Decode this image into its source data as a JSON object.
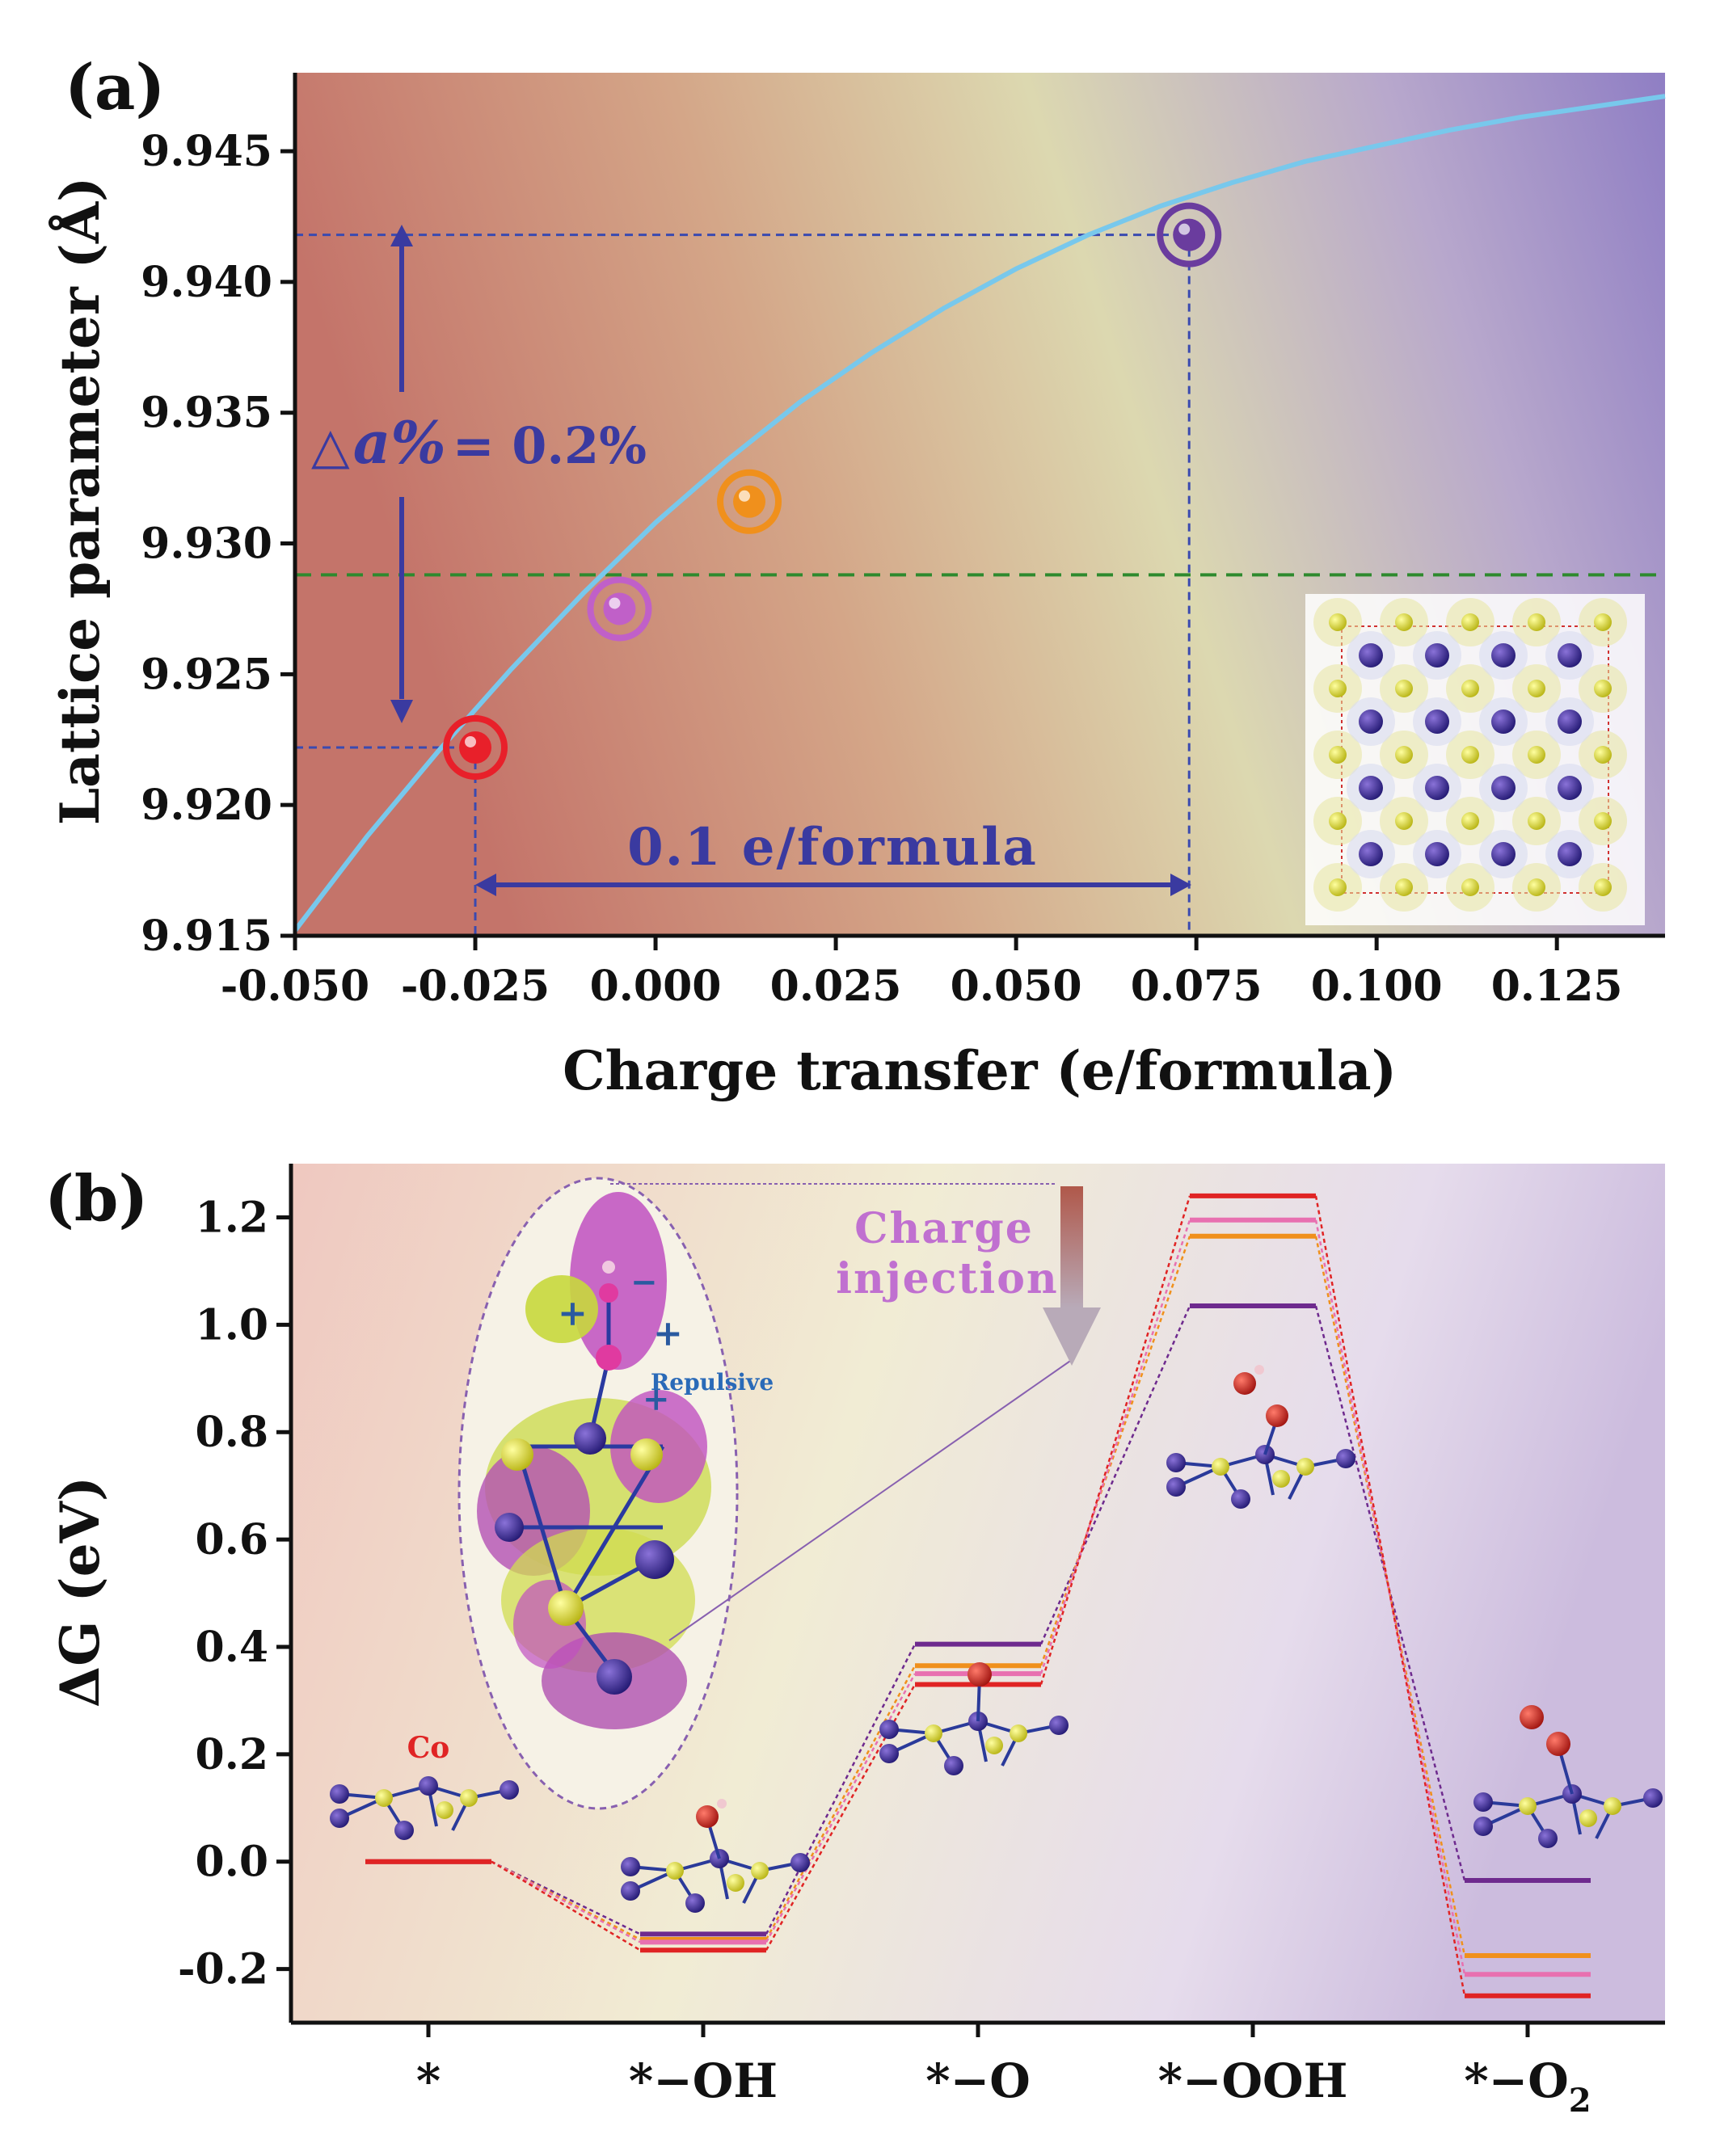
{
  "chart_data": [
    {
      "panel": "(a)",
      "type": "line",
      "xlabel": "Charge transfer (e/formula)",
      "ylabel": "Lattice parameter (Å)",
      "xlim": [
        -0.05,
        0.14
      ],
      "ylim": [
        9.915,
        9.948
      ],
      "xticks": [
        "-0.050",
        "-0.025",
        "0.000",
        "0.025",
        "0.050",
        "0.075",
        "0.100",
        "0.125"
      ],
      "xtick_values": [
        -0.05,
        -0.025,
        0,
        0.025,
        0.05,
        0.075,
        0.1,
        0.125
      ],
      "yticks": [
        "9.915",
        "9.920",
        "9.925",
        "9.930",
        "9.935",
        "9.940",
        "9.945"
      ],
      "ytick_values": [
        9.915,
        9.92,
        9.925,
        9.93,
        9.935,
        9.94,
        9.945
      ],
      "curve": {
        "x": [
          -0.05,
          -0.04,
          -0.03,
          -0.02,
          -0.01,
          0.0,
          0.01,
          0.02,
          0.03,
          0.04,
          0.05,
          0.06,
          0.07,
          0.08,
          0.09,
          0.1,
          0.11,
          0.12,
          0.13,
          0.14
        ],
        "y": [
          9.9152,
          9.9188,
          9.9221,
          9.9252,
          9.9281,
          9.9308,
          9.9332,
          9.9354,
          9.9373,
          9.939,
          9.9405,
          9.9418,
          9.9429,
          9.9438,
          9.9446,
          9.9452,
          9.9458,
          9.9463,
          9.9467,
          9.9471
        ],
        "color": "#78c8ec"
      },
      "points": [
        {
          "x": -0.025,
          "y": 9.9222,
          "color": "#e8202a"
        },
        {
          "x": -0.005,
          "y": 9.9275,
          "color": "#c060c8"
        },
        {
          "x": 0.013,
          "y": 9.9316,
          "color": "#f0901c"
        },
        {
          "x": 0.074,
          "y": 9.9418,
          "color": "#6a3c9e"
        }
      ],
      "reference_line": {
        "y": 9.9288,
        "color": "#2e8a2e"
      },
      "annotations": {
        "delta_prefix": "△",
        "delta_a": "a%",
        "delta_value": "= 0.2%",
        "charge_span": "0.1 e/formula"
      }
    },
    {
      "panel": "(b)",
      "type": "energy-level",
      "ylabel": "ΔG (eV)",
      "ylim": [
        -0.3,
        1.3
      ],
      "yticks": [
        "-0.2",
        "0.0",
        "0.2",
        "0.4",
        "0.6",
        "0.8",
        "1.0",
        "1.2"
      ],
      "ytick_values": [
        -0.2,
        0,
        0.2,
        0.4,
        0.6,
        0.8,
        1.0,
        1.2
      ],
      "categories": [
        "*",
        "*−OH",
        "*−O",
        "*−OOH",
        "*−O"
      ],
      "last_subscript": "2",
      "series": [
        {
          "name": "purple",
          "color": "#6e2a8e",
          "values": [
            0.0,
            -0.135,
            0.405,
            1.035,
            -0.035
          ]
        },
        {
          "name": "orange",
          "color": "#f0901c",
          "values": [
            0.0,
            -0.145,
            0.365,
            1.165,
            -0.175
          ]
        },
        {
          "name": "pink",
          "color": "#e870b0",
          "values": [
            0.0,
            -0.15,
            0.35,
            1.195,
            -0.21
          ]
        },
        {
          "name": "red",
          "color": "#e02424",
          "values": [
            0.0,
            -0.165,
            0.33,
            1.24,
            -0.25
          ]
        }
      ],
      "annotations": {
        "charge_injection": [
          "Charge",
          "injection"
        ],
        "repulsive": "Repulsive",
        "co_label": "Co"
      }
    }
  ]
}
